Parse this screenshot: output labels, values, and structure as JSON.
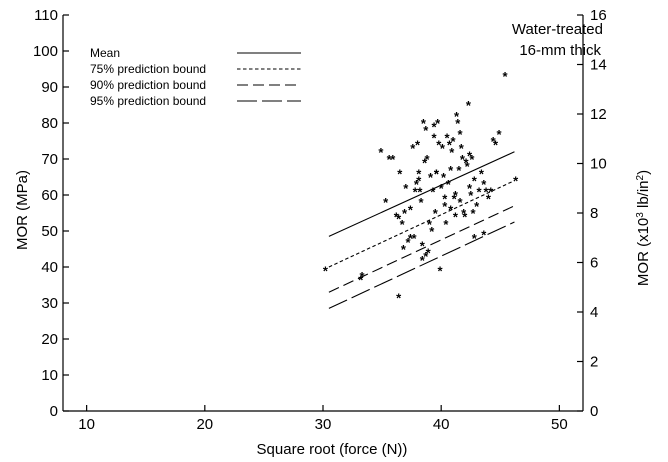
{
  "chart_data": {
    "type": "scatter",
    "title": "",
    "annotation": [
      "Water-treated",
      "16-mm thick"
    ],
    "xlabel": "Square root (force (N))",
    "ylabel_left": "MOR (MPa)",
    "ylabel_right_parts": [
      "MOR (x10",
      "3",
      " lb/in",
      "2",
      ")"
    ],
    "xlim": [
      8,
      52
    ],
    "ylim_left": [
      0,
      110
    ],
    "ylim_right": [
      0,
      16
    ],
    "x_ticks": [
      10,
      20,
      30,
      40,
      50
    ],
    "y_ticks_left": [
      0,
      10,
      20,
      30,
      40,
      50,
      60,
      70,
      80,
      90,
      100,
      110
    ],
    "y_ticks_right": [
      0,
      2,
      4,
      6,
      8,
      10,
      12,
      14,
      16
    ],
    "grid": false,
    "legend_position": "top-left",
    "marker": "*",
    "series": [
      {
        "name": "Mean",
        "dash": "solid",
        "x": [
          30.5,
          46.2
        ],
        "y": [
          48.5,
          72.0
        ]
      },
      {
        "name": "75% prediction bound",
        "dash": "short-dash",
        "x": [
          30.5,
          46.2
        ],
        "y": [
          40.0,
          64.0
        ]
      },
      {
        "name": "90% prediction bound",
        "dash": "medium-dash",
        "x": [
          30.5,
          46.2
        ],
        "y": [
          33.0,
          57.0
        ]
      },
      {
        "name": "95% prediction bound",
        "dash": "long-dash",
        "x": [
          30.5,
          46.2
        ],
        "y": [
          28.5,
          52.5
        ]
      }
    ],
    "points": {
      "x": [
        30.2,
        33.2,
        33.3,
        34.9,
        35.3,
        35.6,
        35.9,
        36.2,
        36.4,
        36.5,
        36.7,
        36.8,
        37.0,
        37.2,
        37.4,
        37.6,
        37.8,
        37.9,
        38.0,
        38.1,
        38.2,
        38.3,
        38.4,
        38.5,
        38.6,
        38.7,
        38.8,
        38.9,
        39.0,
        39.1,
        39.2,
        39.3,
        39.4,
        39.5,
        39.6,
        39.7,
        39.8,
        39.9,
        40.0,
        40.1,
        40.2,
        40.3,
        40.4,
        40.5,
        40.6,
        40.7,
        40.8,
        40.9,
        41.0,
        41.1,
        41.2,
        41.3,
        41.4,
        41.5,
        41.6,
        41.7,
        41.8,
        41.9,
        42.0,
        42.1,
        42.2,
        42.3,
        42.4,
        42.5,
        42.6,
        42.7,
        42.8,
        43.0,
        43.2,
        43.4,
        43.6,
        43.8,
        44.0,
        44.2,
        44.4,
        44.6,
        44.9,
        45.4,
        46.3,
        36.4,
        37.7,
        38.4,
        38.7,
        39.4,
        40.3,
        41.2,
        42.4,
        43.6,
        39.6,
        40.8,
        41.6,
        42.8,
        38.1,
        37.4,
        36.9
      ],
      "y": [
        39,
        36.5,
        37.5,
        72,
        58,
        70,
        70,
        54,
        53.5,
        66,
        52,
        45,
        62,
        47,
        56,
        73,
        61,
        63,
        74,
        64,
        61,
        58,
        46,
        80,
        69,
        78,
        70,
        44,
        52,
        65,
        50,
        61,
        79,
        55,
        66,
        80,
        74,
        39,
        62,
        73,
        65,
        59,
        52,
        76,
        63,
        74,
        67,
        72,
        75,
        59,
        54,
        82,
        80,
        67,
        58,
        73,
        70,
        55,
        54,
        69,
        68,
        85,
        62,
        60,
        70,
        55,
        48,
        57,
        61,
        66,
        49,
        61,
        59,
        61,
        75,
        74,
        77,
        93,
        64,
        31.5,
        48,
        42,
        43,
        76,
        57,
        60,
        71,
        63,
        66,
        56,
        77,
        64,
        66,
        48,
        55
      ]
    }
  }
}
